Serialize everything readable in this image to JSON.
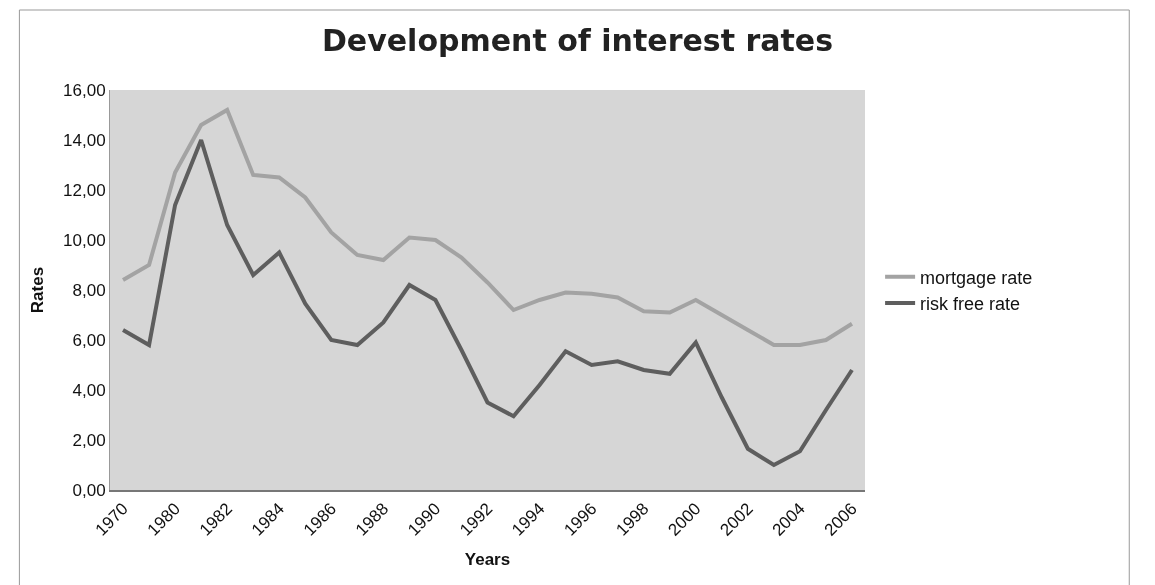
{
  "chart_data": {
    "type": "line",
    "title": "Development of interest rates",
    "xlabel": "Years",
    "ylabel": "Rates",
    "categories": [
      "1970",
      null,
      "1980",
      null,
      "1982",
      null,
      "1984",
      null,
      "1986",
      null,
      "1988",
      null,
      "1990",
      null,
      "1992",
      null,
      "1994",
      null,
      "1996",
      null,
      "1998",
      null,
      "2000",
      null,
      "2002",
      null,
      "2004",
      null,
      "2006"
    ],
    "series": [
      {
        "name": "mortgage rate",
        "color": "#a3a3a3",
        "values": [
          8.4,
          9.0,
          12.7,
          14.6,
          15.2,
          12.6,
          12.5,
          11.7,
          10.3,
          9.4,
          9.2,
          10.1,
          10.0,
          9.3,
          8.3,
          7.2,
          7.6,
          7.9,
          7.85,
          7.7,
          7.15,
          7.1,
          7.6,
          7.0,
          6.4,
          5.8,
          5.8,
          6.0,
          6.65
        ]
      },
      {
        "name": "risk free rate",
        "color": "#5e5e5e",
        "values": [
          6.4,
          5.8,
          11.4,
          14.0,
          10.6,
          8.6,
          9.5,
          7.45,
          6.0,
          5.8,
          6.7,
          8.2,
          7.6,
          5.6,
          3.5,
          2.95,
          4.2,
          5.55,
          5.0,
          5.15,
          4.8,
          4.65,
          5.9,
          3.7,
          1.65,
          1.0,
          1.55,
          3.2,
          4.8
        ]
      }
    ],
    "ylim": [
      0,
      16
    ],
    "yticks": [
      {
        "value": 0,
        "label": "0,00"
      },
      {
        "value": 2,
        "label": "2,00"
      },
      {
        "value": 4,
        "label": "4,00"
      },
      {
        "value": 6,
        "label": "6,00"
      },
      {
        "value": 8,
        "label": "8,00"
      },
      {
        "value": 10,
        "label": "10,00"
      },
      {
        "value": 12,
        "label": "12,00"
      },
      {
        "value": 14,
        "label": "14,00"
      },
      {
        "value": 16,
        "label": "16,00"
      }
    ],
    "grid": false,
    "legend": "right",
    "marker": "none",
    "line_style": "solid"
  }
}
